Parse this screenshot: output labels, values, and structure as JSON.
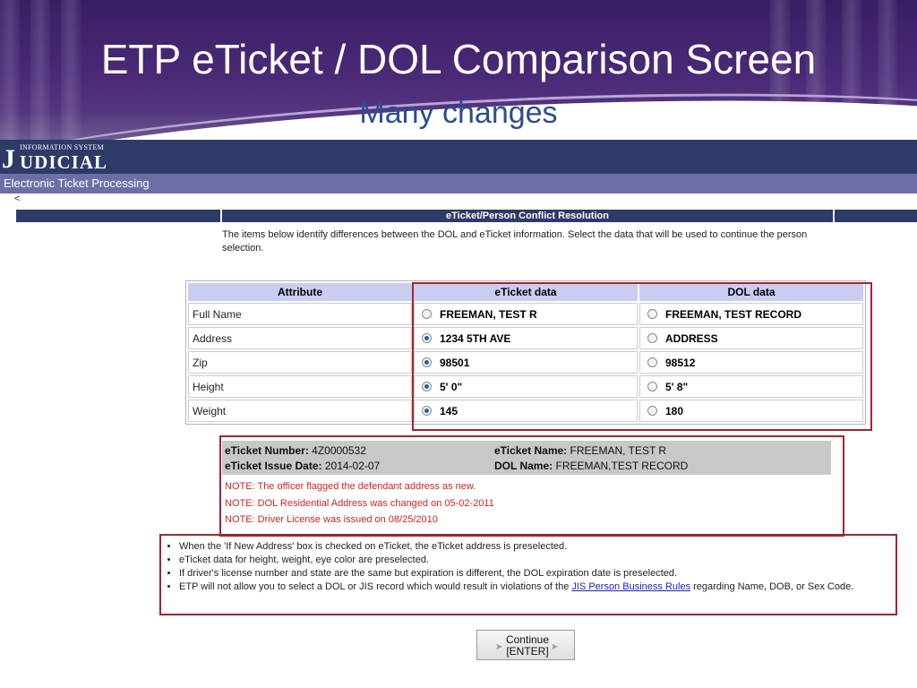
{
  "slide": {
    "title": "ETP eTicket / DOL Comparison Screen",
    "subtitle": "Many changes"
  },
  "app": {
    "logo_letter": "J",
    "logo_small": "INFORMATION SYSTEM",
    "logo_big": "UDICIAL",
    "subnav": "Electronic Ticket Processing",
    "back": "<"
  },
  "conflict": {
    "title": "eTicket/Person Conflict Resolution",
    "intro": "The items below identify differences between the DOL and eTicket information. Select the data that will be used to continue the person selection."
  },
  "table": {
    "headers": [
      "Attribute",
      "eTicket data",
      "DOL data"
    ],
    "rows": [
      {
        "attr": "Full Name",
        "eticket": "FREEMAN, TEST R",
        "dol": "FREEMAN, TEST RECORD",
        "selected": "none"
      },
      {
        "attr": "Address",
        "eticket": "1234 5TH AVE",
        "dol": "ADDRESS",
        "selected": "eticket"
      },
      {
        "attr": "Zip",
        "eticket": "98501",
        "dol": "98512",
        "selected": "eticket"
      },
      {
        "attr": "Height",
        "eticket": "5' 0\"",
        "dol": "5' 8\"",
        "selected": "eticket"
      },
      {
        "attr": "Weight",
        "eticket": "145",
        "dol": "180",
        "selected": "eticket"
      }
    ]
  },
  "ticket": {
    "number_label": "eTicket Number:",
    "number": "4Z0000532",
    "name_label": "eTicket Name:",
    "name": "FREEMAN, TEST R",
    "issue_label": "eTicket Issue Date:",
    "issue": "2014-02-07",
    "dol_label": "DOL Name:",
    "dol": "FREEMAN,TEST RECORD"
  },
  "notes": [
    "NOTE: The officer flagged the defendant address as new.",
    "NOTE: DOL Residential Address was changed on 05-02-2011",
    "NOTE: Driver License was issued on 08/25/2010"
  ],
  "bullets": {
    "b1": "When the 'If New Address' box is checked on eTicket, the eTicket address is preselected.",
    "b2": "eTicket data for height, weight, eye color are preselected.",
    "b3": "If driver's license number and state are the same but expiration is different, the DOL expiration date is preselected.",
    "b4_pre": "ETP will not allow you to select a DOL or JIS record which would result in violations of the ",
    "b4_link": "JIS Person Business Rules",
    "b4_post": " regarding Name, DOB, or Sex Code."
  },
  "button": {
    "line1": "Continue",
    "line2": "[ENTER]"
  },
  "colors": {
    "banner_purple": "#3a1e63",
    "app_header_navy": "#2e3a68",
    "subnav": "#6e6ea6",
    "table_header": "#c9cdf2",
    "highlight_border": "#a8232e",
    "note_red": "#e02020"
  },
  "icons": {
    "radio": "radio-button",
    "arrow": "arrow-right-icon"
  }
}
